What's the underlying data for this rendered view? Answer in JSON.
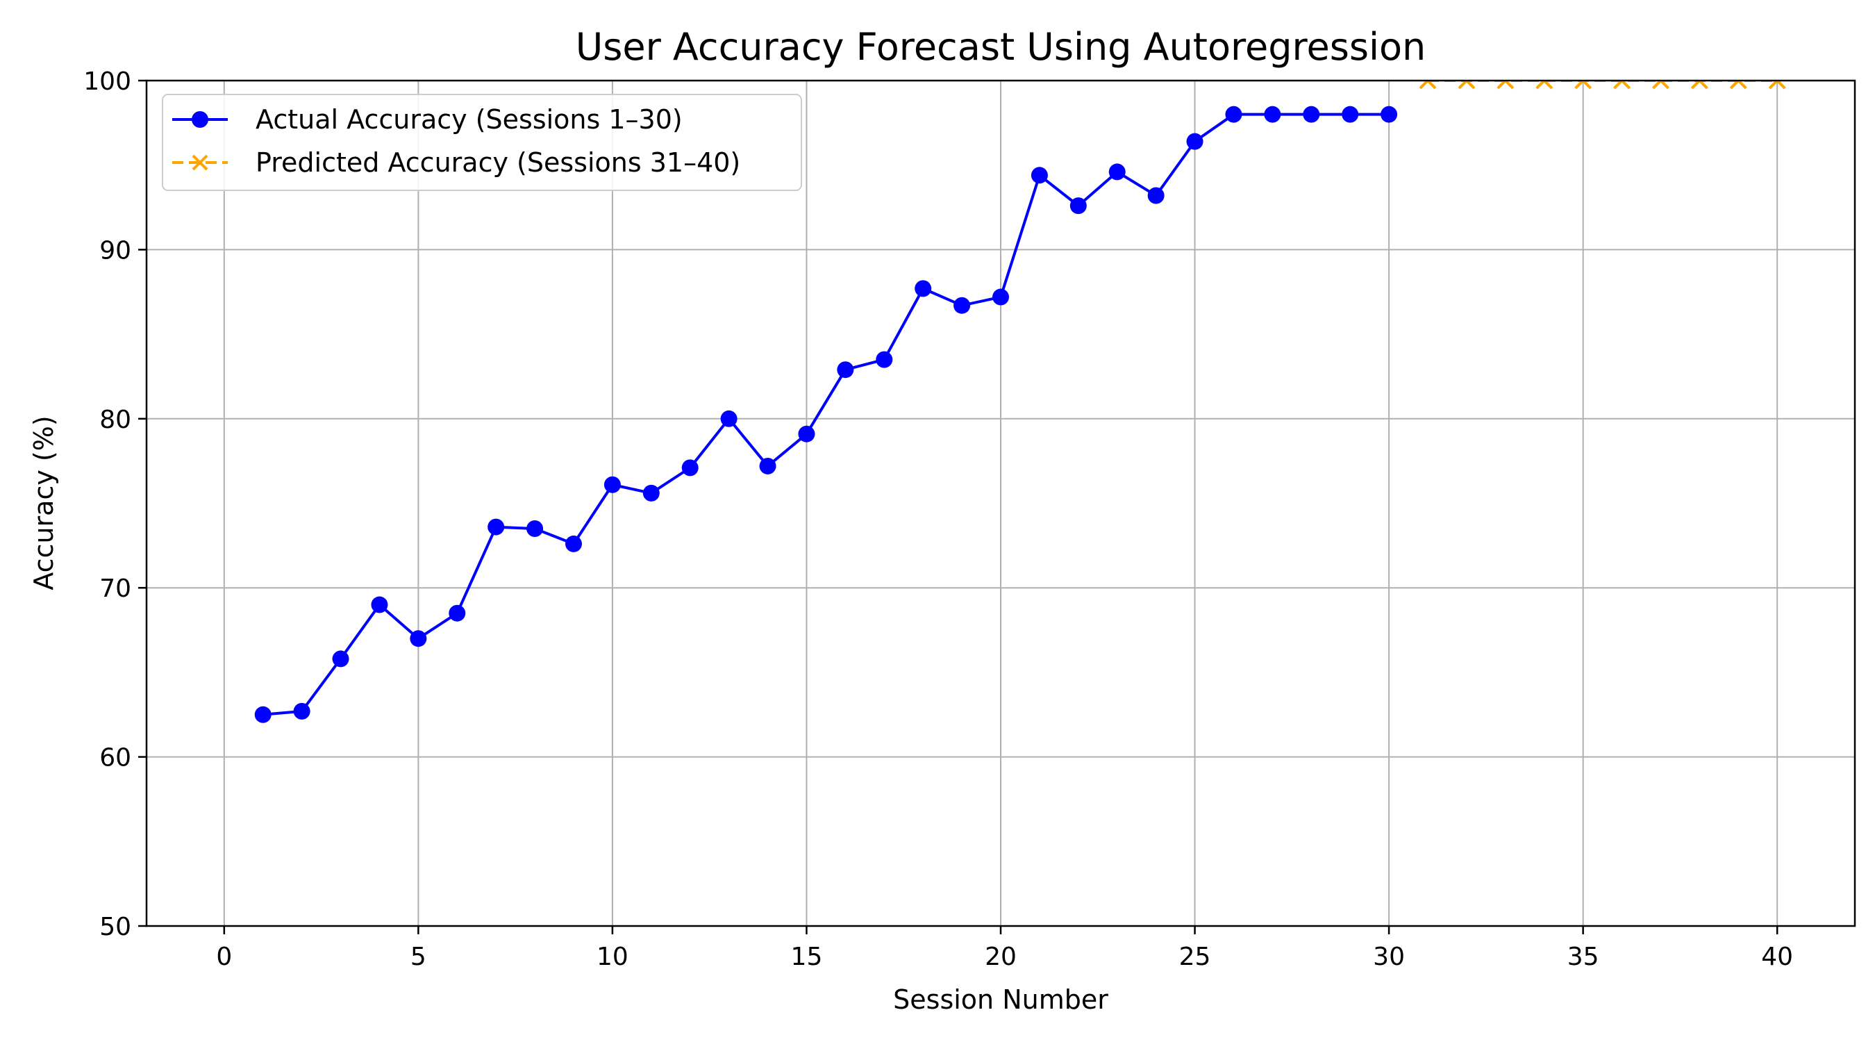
{
  "chart_data": {
    "type": "line",
    "title": "User Accuracy Forecast Using Autoregression",
    "xlabel": "Session Number",
    "ylabel": "Accuracy (%)",
    "xlim": [
      -2,
      42
    ],
    "ylim": [
      50,
      100
    ],
    "xticks": [
      0,
      5,
      10,
      15,
      20,
      25,
      30,
      35,
      40
    ],
    "yticks": [
      50,
      60,
      70,
      80,
      90,
      100
    ],
    "grid": true,
    "legend_position": "top-left",
    "series": [
      {
        "name": "Actual Accuracy (Sessions 1–30)",
        "color": "#0000ff",
        "line_style": "solid",
        "marker": "circle",
        "x": [
          1,
          2,
          3,
          4,
          5,
          6,
          7,
          8,
          9,
          10,
          11,
          12,
          13,
          14,
          15,
          16,
          17,
          18,
          19,
          20,
          21,
          22,
          23,
          24,
          25,
          26,
          27,
          28,
          29,
          30
        ],
        "y": [
          62.5,
          62.7,
          65.8,
          69.0,
          67.0,
          68.5,
          73.6,
          73.5,
          72.6,
          76.1,
          75.6,
          77.1,
          80.0,
          77.2,
          79.1,
          82.9,
          83.5,
          87.7,
          86.7,
          87.2,
          94.4,
          92.6,
          94.6,
          93.2,
          96.4,
          98.0,
          98.0,
          98.0,
          98.0,
          98.0
        ]
      },
      {
        "name": "Predicted Accuracy (Sessions 31–40)",
        "color": "#ffa500",
        "line_style": "dashed",
        "marker": "x",
        "x": [
          31,
          32,
          33,
          34,
          35,
          36,
          37,
          38,
          39,
          40
        ],
        "y": [
          100,
          100,
          100,
          100,
          100,
          100,
          100,
          100,
          100,
          100
        ]
      }
    ]
  }
}
